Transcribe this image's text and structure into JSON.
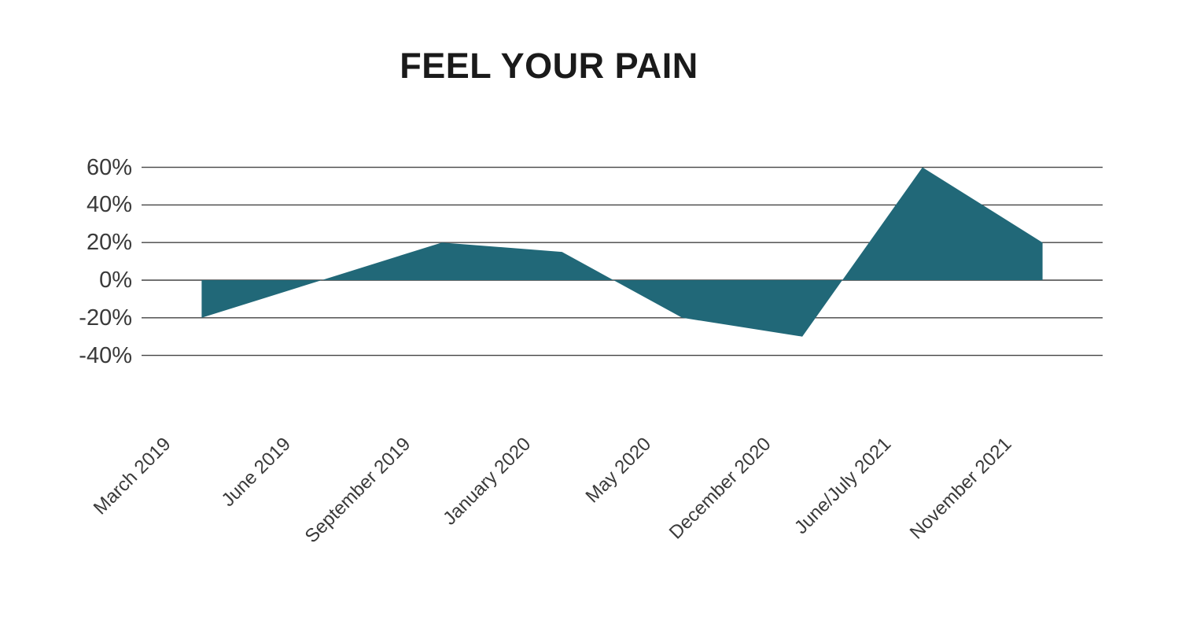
{
  "page": {
    "background": "#ffffff"
  },
  "chart_data": {
    "type": "area",
    "title": "FEEL YOUR PAIN",
    "categories": [
      "March 2019",
      "June 2019",
      "September 2019",
      "January 2020",
      "May 2020",
      "December 2020",
      "June/July 2021",
      "November 2021"
    ],
    "values": [
      -20,
      0,
      20,
      15,
      -20,
      -30,
      60,
      20
    ],
    "unit": "%",
    "y_ticks": [
      60,
      40,
      20,
      0,
      -20,
      -40
    ],
    "y_tick_labels": [
      "60%",
      "40%",
      "20%",
      "0%",
      "-20%",
      "-40%"
    ],
    "ylim": [
      -40,
      60
    ],
    "xlabel": "",
    "ylabel": "",
    "grid": true,
    "legend": false,
    "x_label_rotation_deg": 45,
    "fill_color": "#216878",
    "gridline_color": "#434343",
    "axis_text_color": "#3a3a3a",
    "title_color": "#1a1a1a"
  }
}
